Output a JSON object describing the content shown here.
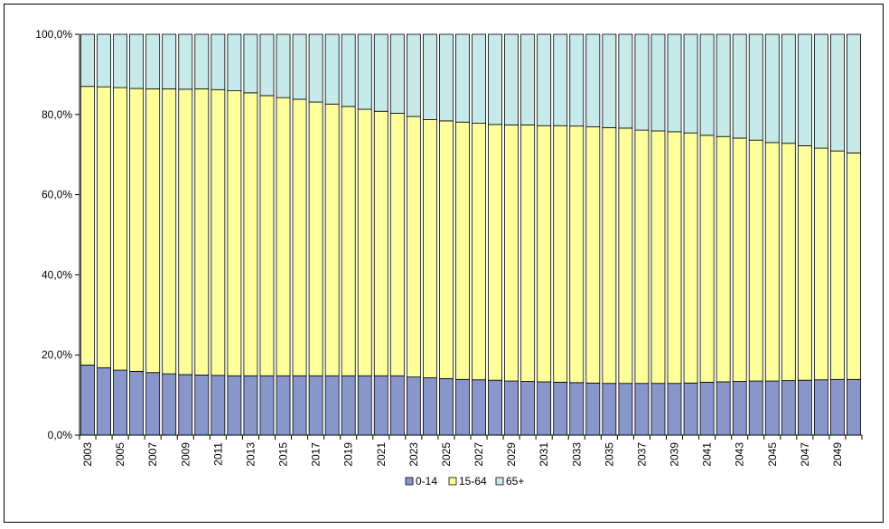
{
  "chart_data": {
    "type": "bar",
    "stacked": true,
    "title": "",
    "xlabel": "",
    "ylabel": "",
    "ylim": [
      0,
      100
    ],
    "y_ticks": [
      "0,0%",
      "20,0%",
      "40,0%",
      "60,0%",
      "80,0%",
      "100,0%"
    ],
    "x_tick_labels": [
      "2003",
      "2005",
      "2007",
      "2009",
      "2011",
      "2013",
      "2015",
      "2017",
      "2019",
      "2021",
      "2023",
      "2025",
      "2027",
      "2029",
      "2031",
      "2033",
      "2035",
      "2037",
      "2039",
      "2041",
      "2043",
      "2045",
      "2047",
      "2049"
    ],
    "categories": [
      "2003",
      "2004",
      "2005",
      "2006",
      "2007",
      "2008",
      "2009",
      "2010",
      "2011",
      "2012",
      "2013",
      "2014",
      "2015",
      "2016",
      "2017",
      "2018",
      "2019",
      "2020",
      "2021",
      "2022",
      "2023",
      "2024",
      "2025",
      "2026",
      "2027",
      "2028",
      "2029",
      "2030",
      "2031",
      "2032",
      "2033",
      "2034",
      "2035",
      "2036",
      "2037",
      "2038",
      "2039",
      "2040",
      "2041",
      "2042",
      "2043",
      "2044",
      "2045",
      "2046",
      "2047",
      "2048",
      "2049",
      "2050"
    ],
    "series": [
      {
        "name": "0-14",
        "color": "#8896cc",
        "values": [
          17.5,
          16.8,
          16.2,
          15.9,
          15.6,
          15.3,
          15.1,
          15.0,
          14.9,
          14.8,
          14.8,
          14.8,
          14.8,
          14.8,
          14.8,
          14.8,
          14.8,
          14.8,
          14.8,
          14.8,
          14.5,
          14.3,
          14.1,
          13.9,
          13.8,
          13.7,
          13.5,
          13.4,
          13.3,
          13.2,
          13.1,
          13.0,
          12.9,
          12.9,
          12.9,
          12.9,
          12.9,
          13.0,
          13.2,
          13.3,
          13.4,
          13.5,
          13.5,
          13.6,
          13.7,
          13.8,
          13.9,
          13.9
        ]
      },
      {
        "name": "15-64",
        "color": "#ffff99",
        "values": [
          69.5,
          70.1,
          70.5,
          70.6,
          70.8,
          71.1,
          71.2,
          71.4,
          71.3,
          71.1,
          70.6,
          69.9,
          69.4,
          69.0,
          68.3,
          67.8,
          67.2,
          66.5,
          66.0,
          65.5,
          65.0,
          64.4,
          64.3,
          64.2,
          64.0,
          63.8,
          63.9,
          64.0,
          63.9,
          64.0,
          64.0,
          63.9,
          63.8,
          63.7,
          63.2,
          63.0,
          62.8,
          62.4,
          61.6,
          61.2,
          60.7,
          60.1,
          59.5,
          59.2,
          58.5,
          57.8,
          57.0,
          56.5
        ]
      },
      {
        "name": "65+",
        "color": "#c6eaea",
        "values": [
          13.0,
          13.1,
          13.3,
          13.5,
          13.6,
          13.6,
          13.7,
          13.6,
          13.8,
          14.1,
          14.6,
          15.3,
          15.8,
          16.2,
          16.9,
          17.4,
          18.0,
          18.7,
          19.2,
          19.7,
          20.5,
          21.3,
          21.6,
          21.9,
          22.2,
          22.5,
          22.6,
          22.6,
          22.8,
          22.8,
          22.9,
          23.1,
          23.3,
          23.4,
          23.9,
          24.1,
          24.3,
          24.6,
          25.2,
          25.5,
          25.9,
          26.4,
          27.0,
          27.2,
          27.8,
          28.4,
          29.1,
          29.6
        ]
      }
    ],
    "grid": false,
    "legend_position": "bottom"
  }
}
